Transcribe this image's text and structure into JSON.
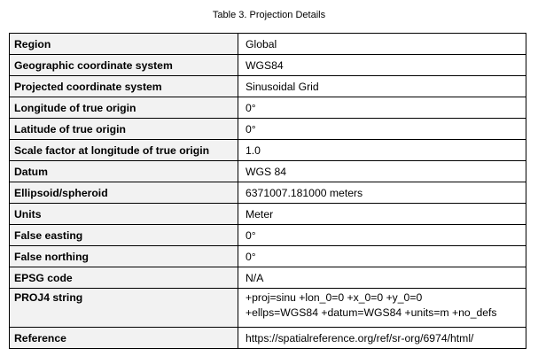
{
  "caption": "Table 3. Projection Details",
  "rows": [
    {
      "label": "Region",
      "value": "Global"
    },
    {
      "label": "Geographic coordinate system",
      "value": "WGS84"
    },
    {
      "label": "Projected coordinate system",
      "value": "Sinusoidal Grid"
    },
    {
      "label": "Longitude of true origin",
      "value": "0°"
    },
    {
      "label": "Latitude of true origin",
      "value": "0°"
    },
    {
      "label": "Scale factor at longitude of true origin",
      "value": "1.0"
    },
    {
      "label": "Datum",
      "value": "WGS 84"
    },
    {
      "label": "Ellipsoid/spheroid",
      "value": "6371007.181000 meters"
    },
    {
      "label": "Units",
      "value": "Meter"
    },
    {
      "label": "False easting",
      "value": "0°"
    },
    {
      "label": "False northing",
      "value": "0°"
    },
    {
      "label": "EPSG code",
      "value": "N/A"
    },
    {
      "label": "PROJ4 string",
      "value_lines": [
        "+proj=sinu +lon_0=0 +x_0=0 +y_0=0",
        "+ellps=WGS84 +datum=WGS84 +units=m +no_defs"
      ]
    },
    {
      "label": "Reference",
      "value": "https://spatialreference.org/ref/sr-org/6974/html/"
    }
  ]
}
